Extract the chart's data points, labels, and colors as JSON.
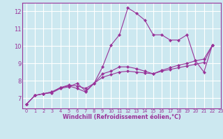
{
  "bg_color": "#cce8f0",
  "grid_color": "#ffffff",
  "line_color": "#993399",
  "marker": "D",
  "marker_size": 2.2,
  "xlabel": "Windchill (Refroidissement éolien,°C)",
  "xlim": [
    -0.5,
    23
  ],
  "ylim": [
    6.4,
    12.5
  ],
  "yticks": [
    7,
    8,
    9,
    10,
    11,
    12
  ],
  "xticks": [
    0,
    1,
    2,
    3,
    4,
    5,
    6,
    7,
    8,
    9,
    10,
    11,
    12,
    13,
    14,
    15,
    16,
    17,
    18,
    19,
    20,
    21,
    22,
    23
  ],
  "series": [
    [
      6.65,
      7.15,
      7.25,
      7.3,
      7.55,
      7.65,
      7.85,
      7.4,
      7.85,
      8.8,
      10.05,
      10.65,
      12.2,
      11.9,
      11.5,
      10.65,
      10.65,
      10.35,
      10.35,
      10.65,
      9.15,
      8.5,
      10.05
    ],
    [
      6.65,
      7.15,
      7.25,
      7.35,
      7.6,
      7.7,
      7.55,
      7.35,
      7.85,
      8.4,
      8.55,
      8.8,
      8.8,
      8.7,
      8.55,
      8.4,
      8.6,
      8.75,
      8.9,
      9.0,
      9.15,
      9.25,
      10.05
    ],
    [
      6.65,
      7.15,
      7.25,
      7.35,
      7.6,
      7.75,
      7.7,
      7.55,
      7.85,
      8.2,
      8.35,
      8.5,
      8.55,
      8.5,
      8.45,
      8.4,
      8.55,
      8.65,
      8.75,
      8.85,
      8.95,
      9.05,
      10.05
    ]
  ],
  "xlabel_fontsize": 5.8,
  "xlabel_fontweight": "bold",
  "ytick_fontsize": 6.0,
  "xtick_fontsize": 4.8
}
